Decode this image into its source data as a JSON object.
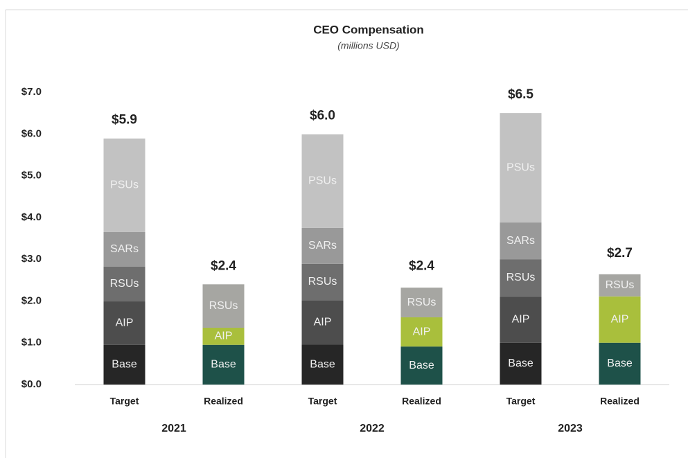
{
  "chart_data": {
    "type": "stacked_bar",
    "title": "CEO Compensation",
    "subtitle": "(millions USD)",
    "categories": [
      "Target",
      "Realized",
      "Target",
      "Realized",
      "Target",
      "Realized"
    ],
    "groups": [
      "2021",
      "2022",
      "2023"
    ],
    "series": [
      {
        "name": "Base",
        "colors": [
          "#262626",
          "#1e5149",
          "#262626",
          "#1e5149",
          "#262626",
          "#1e5149"
        ],
        "values": [
          0.95,
          0.95,
          0.96,
          0.91,
          1.0,
          1.0
        ]
      },
      {
        "name": "AIP",
        "colors": [
          "#4d4d4d",
          "#a9bf3c",
          "#4d4d4d",
          "#a9bf3c",
          "#4d4d4d",
          "#a9bf3c"
        ],
        "values": [
          1.04,
          0.41,
          1.06,
          0.7,
          1.11,
          1.11
        ]
      },
      {
        "name": "RSUs",
        "colors": [
          "#6e6e6e",
          "#a6a6a2",
          "#6e6e6e",
          "#a6a6a2",
          "#6e6e6e",
          "#a6a6a2"
        ],
        "values": [
          0.83,
          1.04,
          0.87,
          0.71,
          0.89,
          0.53
        ]
      },
      {
        "name": "SARs",
        "colors": [
          "#999999",
          null,
          "#999999",
          null,
          "#999999",
          null
        ],
        "values": [
          0.83,
          null,
          0.86,
          null,
          0.88,
          null
        ]
      },
      {
        "name": "PSUs",
        "colors": [
          "#c2c2c2",
          null,
          "#c2c2c2",
          null,
          "#c2c2c2",
          null
        ],
        "values": [
          2.24,
          null,
          2.24,
          null,
          2.62,
          null
        ]
      }
    ],
    "totals": [
      5.9,
      2.4,
      6.0,
      2.4,
      6.5,
      2.7
    ],
    "total_labels": [
      "$5.9",
      "$2.4",
      "$6.0",
      "$2.4",
      "$6.5",
      "$2.7"
    ],
    "ylim": [
      0,
      7
    ],
    "yticks": [
      {
        "value": 0,
        "label": "$0.0"
      },
      {
        "value": 1,
        "label": "$1.0"
      },
      {
        "value": 2,
        "label": "$2.0"
      },
      {
        "value": 3,
        "label": "$3.0"
      },
      {
        "value": 4,
        "label": "$4.0"
      },
      {
        "value": 5,
        "label": "$5.0"
      },
      {
        "value": 6,
        "label": "$6.0"
      },
      {
        "value": 7,
        "label": "$7.0"
      }
    ],
    "grid": false
  }
}
